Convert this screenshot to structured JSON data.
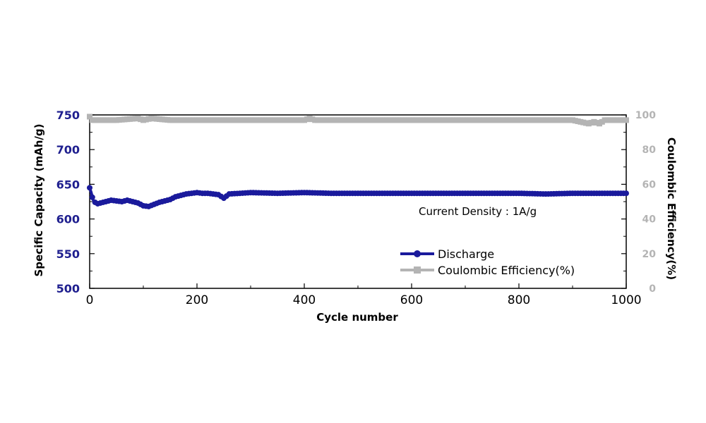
{
  "chart_data": {
    "type": "line",
    "xlabel": "Cycle number",
    "xlim": [
      0,
      1000
    ],
    "xticks": [
      0,
      200,
      400,
      600,
      800,
      1000
    ],
    "y_left": {
      "label": "Specific Capacity (mAh/g)",
      "lim": [
        500,
        750
      ],
      "ticks": [
        500,
        550,
        600,
        650,
        700,
        750
      ],
      "tick_color": "#1f1f8f"
    },
    "y_right": {
      "label": "Coulombic Efficiency(%)",
      "lim": [
        0,
        100
      ],
      "ticks": [
        0,
        20,
        40,
        60,
        80,
        100
      ],
      "tick_color": "#b4b4b4"
    },
    "annotation": "Current Density : 1A/g",
    "legend_position": "lower-right",
    "series": [
      {
        "name": "Discharge",
        "axis": "left",
        "color": "#1a1a9c",
        "marker": "circle",
        "x": [
          0,
          3,
          6,
          10,
          15,
          20,
          30,
          40,
          50,
          60,
          70,
          80,
          90,
          100,
          110,
          120,
          130,
          140,
          150,
          160,
          170,
          180,
          190,
          200,
          210,
          220,
          230,
          240,
          250,
          260,
          280,
          300,
          350,
          400,
          450,
          500,
          550,
          600,
          650,
          700,
          750,
          800,
          850,
          900,
          950,
          1000
        ],
        "y": [
          645,
          638,
          628,
          624,
          622,
          623,
          625,
          627,
          626,
          625,
          627,
          625,
          623,
          619,
          618,
          621,
          624,
          626,
          628,
          632,
          634,
          636,
          637,
          638,
          637,
          637,
          636,
          635,
          630,
          636,
          637,
          638,
          637,
          638,
          637,
          637,
          637,
          637,
          637,
          637,
          637,
          637,
          636,
          637,
          637,
          637
        ]
      },
      {
        "name": "Coulombic Efficiency(%)",
        "axis": "right",
        "color": "#b4b4b4",
        "marker": "square",
        "x": [
          0,
          5,
          20,
          50,
          90,
          100,
          115,
          150,
          200,
          300,
          400,
          410,
          420,
          500,
          600,
          700,
          800,
          900,
          930,
          940,
          950,
          960,
          1000
        ],
        "y": [
          99,
          97,
          97,
          97,
          98,
          97,
          98,
          97,
          97,
          97,
          97,
          98,
          97,
          97,
          97,
          97,
          97,
          97,
          95,
          96,
          95,
          97,
          97
        ]
      }
    ]
  }
}
